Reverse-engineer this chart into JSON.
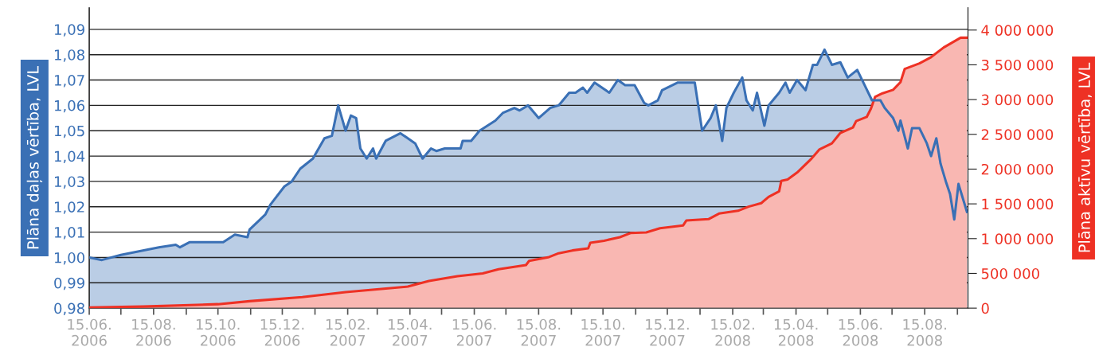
{
  "chart_data": {
    "type": "area",
    "ylabel": "Plāna daļas vērtība, LVL",
    "y2label": "Plāna aktīvu vērtība, LVL",
    "series": [
      {
        "color": "#3a70b5",
        "x": [
          "2006-06-15",
          "2006-06-27",
          "2006-07-15",
          "2006-08-20",
          "2006-09-05",
          "2006-09-09",
          "2006-09-18",
          "2006-10-20",
          "2006-10-31",
          "2006-11-12",
          "2006-11-14",
          "2006-11-29",
          "2006-12-04",
          "2006-12-17",
          "2006-12-24",
          "2007-01-01",
          "2007-01-13",
          "2007-01-24",
          "2007-01-31",
          "2007-02-06",
          "2007-02-13",
          "2007-02-18",
          "2007-02-23",
          "2007-02-27",
          "2007-03-05",
          "2007-03-11",
          "2007-03-14",
          "2007-03-23",
          "2007-04-06",
          "2007-04-13",
          "2007-04-20",
          "2007-04-27",
          "2007-05-05",
          "2007-05-10",
          "2007-05-18",
          "2007-06-02",
          "2007-06-04",
          "2007-06-12",
          "2007-06-20",
          "2007-07-05",
          "2007-07-12",
          "2007-07-23",
          "2007-07-28",
          "2007-08-05",
          "2007-08-15",
          "2007-08-26",
          "2007-09-03",
          "2007-09-13",
          "2007-09-19",
          "2007-09-26",
          "2007-09-30",
          "2007-10-07",
          "2007-10-21",
          "2007-10-29",
          "2007-11-05",
          "2007-11-14",
          "2007-11-23",
          "2007-11-27",
          "2007-12-06",
          "2007-12-10",
          "2007-12-25",
          "2008-01-10",
          "2008-01-17",
          "2008-01-25",
          "2008-01-30",
          "2008-02-05",
          "2008-02-09",
          "2008-02-16",
          "2008-02-24",
          "2008-02-28",
          "2008-03-05",
          "2008-03-09",
          "2008-03-16",
          "2008-03-20",
          "2008-03-30",
          "2008-04-05",
          "2008-04-09",
          "2008-04-16",
          "2008-04-24",
          "2008-05-01",
          "2008-05-05",
          "2008-05-12",
          "2008-05-19",
          "2008-05-27",
          "2008-06-03",
          "2008-06-12",
          "2008-06-19",
          "2008-06-26",
          "2008-07-04",
          "2008-07-08",
          "2008-07-16",
          "2008-07-21",
          "2008-07-23",
          "2008-07-30",
          "2008-08-03",
          "2008-08-10",
          "2008-08-17",
          "2008-08-21",
          "2008-08-26",
          "2008-08-30",
          "2008-09-04",
          "2008-09-08",
          "2008-09-12",
          "2008-09-16",
          "2008-09-24"
        ],
        "values": [
          1.0,
          0.999,
          1.001,
          1.004,
          1.005,
          1.004,
          1.006,
          1.006,
          1.009,
          1.008,
          1.011,
          1.017,
          1.021,
          1.028,
          1.03,
          1.035,
          1.039,
          1.047,
          1.048,
          1.06,
          1.05,
          1.056,
          1.055,
          1.043,
          1.039,
          1.043,
          1.039,
          1.046,
          1.049,
          1.047,
          1.045,
          1.039,
          1.043,
          1.042,
          1.043,
          1.043,
          1.046,
          1.046,
          1.05,
          1.054,
          1.057,
          1.059,
          1.058,
          1.06,
          1.055,
          1.059,
          1.06,
          1.065,
          1.065,
          1.067,
          1.065,
          1.069,
          1.065,
          1.07,
          1.068,
          1.068,
          1.061,
          1.06,
          1.062,
          1.066,
          1.069,
          1.069,
          1.05,
          1.055,
          1.06,
          1.046,
          1.059,
          1.065,
          1.071,
          1.062,
          1.058,
          1.065,
          1.052,
          1.06,
          1.065,
          1.069,
          1.065,
          1.07,
          1.066,
          1.076,
          1.076,
          1.082,
          1.076,
          1.077,
          1.071,
          1.074,
          1.068,
          1.062,
          1.062,
          1.059,
          1.055,
          1.05,
          1.054,
          1.043,
          1.051,
          1.051,
          1.045,
          1.04,
          1.047,
          1.037,
          1.03,
          1.025,
          1.015,
          1.029,
          1.018
        ]
      },
      {
        "color": "#ee3124",
        "axis": "y2",
        "x": [
          "2006-06-15",
          "2006-08-05",
          "2006-10-15",
          "2006-11-14",
          "2007-01-03",
          "2007-02-13",
          "2007-04-13",
          "2007-05-03",
          "2007-05-30",
          "2007-06-23",
          "2007-07-08",
          "2007-08-03",
          "2007-08-06",
          "2007-08-24",
          "2007-09-03",
          "2007-09-16",
          "2007-10-01",
          "2007-10-03",
          "2007-10-16",
          "2007-10-31",
          "2007-11-10",
          "2007-11-25",
          "2007-12-08",
          "2007-12-30",
          "2008-01-02",
          "2008-01-23",
          "2008-02-02",
          "2008-02-20",
          "2008-03-01",
          "2008-03-13",
          "2008-03-20",
          "2008-03-30",
          "2008-04-01",
          "2008-04-07",
          "2008-04-16",
          "2008-04-29",
          "2008-05-07",
          "2008-05-19",
          "2008-05-27",
          "2008-06-08",
          "2008-06-11",
          "2008-06-21",
          "2008-06-25",
          "2008-06-29",
          "2008-07-06",
          "2008-07-16",
          "2008-07-23",
          "2008-07-27",
          "2008-08-10",
          "2008-08-21",
          "2008-09-02",
          "2008-09-18",
          "2008-09-24"
        ],
        "values": [
          10000,
          23000,
          57000,
          100000,
          160000,
          230000,
          310000,
          390000,
          460000,
          500000,
          560000,
          620000,
          680000,
          730000,
          790000,
          830000,
          860000,
          940000,
          970000,
          1020000,
          1080000,
          1090000,
          1150000,
          1190000,
          1260000,
          1280000,
          1360000,
          1400000,
          1460000,
          1510000,
          1600000,
          1680000,
          1830000,
          1850000,
          1950000,
          2140000,
          2280000,
          2370000,
          2520000,
          2600000,
          2690000,
          2750000,
          2870000,
          3040000,
          3090000,
          3140000,
          3250000,
          3440000,
          3520000,
          3610000,
          3750000,
          3890000,
          3890000
        ]
      }
    ],
    "xlim": [
      "2006-06-15",
      "2008-09-25"
    ],
    "xticks": [
      {
        "value": "2006-06-15",
        "label": "15.06.\n2006"
      },
      {
        "value": "2006-07-15",
        "label": null
      },
      {
        "value": "2006-08-15",
        "label": "15.08.\n2006"
      },
      {
        "value": "2006-09-15",
        "label": null
      },
      {
        "value": "2006-10-15",
        "label": "15.10.\n2006"
      },
      {
        "value": "2006-11-15",
        "label": null
      },
      {
        "value": "2006-12-15",
        "label": "15.12.\n2006"
      },
      {
        "value": "2007-01-15",
        "label": null
      },
      {
        "value": "2007-02-15",
        "label": "15.02.\n2007"
      },
      {
        "value": "2007-03-15",
        "label": null
      },
      {
        "value": "2007-04-15",
        "label": "15.04.\n2007"
      },
      {
        "value": "2007-05-15",
        "label": null
      },
      {
        "value": "2007-06-15",
        "label": "15.06.\n2007"
      },
      {
        "value": "2007-07-15",
        "label": null
      },
      {
        "value": "2007-08-15",
        "label": "15.08.\n2007"
      },
      {
        "value": "2007-09-15",
        "label": null
      },
      {
        "value": "2007-10-15",
        "label": "15.10.\n2007"
      },
      {
        "value": "2007-11-15",
        "label": null
      },
      {
        "value": "2007-12-15",
        "label": "15.12.\n2007"
      },
      {
        "value": "2008-01-15",
        "label": null
      },
      {
        "value": "2008-02-15",
        "label": "15.02.\n2008"
      },
      {
        "value": "2008-03-15",
        "label": null
      },
      {
        "value": "2008-04-15",
        "label": "15.04.\n2008"
      },
      {
        "value": "2008-05-15",
        "label": null
      },
      {
        "value": "2008-06-15",
        "label": "15.06.\n2008"
      },
      {
        "value": "2008-07-15",
        "label": null
      },
      {
        "value": "2008-08-15",
        "label": "15.08.\n2008"
      },
      {
        "value": "2008-09-15",
        "label": null
      }
    ],
    "ylim": [
      0.98,
      1.0985
    ],
    "yticks": [
      {
        "value": 0.98,
        "label": "0,98"
      },
      {
        "value": 0.99,
        "label": "0,99"
      },
      {
        "value": 1.0,
        "label": "1,00"
      },
      {
        "value": 1.01,
        "label": "1,01"
      },
      {
        "value": 1.02,
        "label": "1,02"
      },
      {
        "value": 1.03,
        "label": "1,03"
      },
      {
        "value": 1.04,
        "label": "1,04"
      },
      {
        "value": 1.05,
        "label": "1,05"
      },
      {
        "value": 1.06,
        "label": "1,06"
      },
      {
        "value": 1.07,
        "label": "1,07"
      },
      {
        "value": 1.08,
        "label": "1,08"
      },
      {
        "value": 1.09,
        "label": "1,09"
      }
    ],
    "y2lim": [
      0,
      4320000
    ],
    "y2ticks": [
      {
        "value": 0,
        "label": "0"
      },
      {
        "value": 500000,
        "label": "500 000"
      },
      {
        "value": 1000000,
        "label": "1 000 000"
      },
      {
        "value": 1500000,
        "label": "1 500 000"
      },
      {
        "value": 2000000,
        "label": "2 000 000"
      },
      {
        "value": 2500000,
        "label": "2 500 000"
      },
      {
        "value": 3000000,
        "label": "3 000 000"
      },
      {
        "value": 3500000,
        "label": "3 500 000"
      },
      {
        "value": 4000000,
        "label": "4 000 000"
      }
    ],
    "grid": "y",
    "legend": false
  }
}
